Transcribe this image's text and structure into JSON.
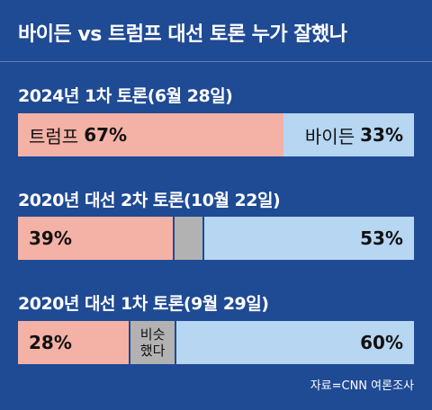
{
  "title": "바이든 vs 트럼프 대선 토론 누가 잘했나",
  "source": "자료=CNN 여론조사",
  "colors": {
    "background": "#1f4a94",
    "trump": "#f4b1a5",
    "biden": "#b6d6f2",
    "tie": "#b2b2b2"
  },
  "chart_data": [
    {
      "type": "bar",
      "title": "2024년 1차 토론(6월 28일)",
      "series": [
        {
          "name": "트럼프",
          "value": 67,
          "label": "67%"
        },
        {
          "name": "바이든",
          "value": 33,
          "label": "33%"
        }
      ]
    },
    {
      "type": "bar",
      "title": "2020년 대선 2차 토론(10월 22일)",
      "series": [
        {
          "value": 39,
          "label": "39%"
        },
        {
          "value": 8,
          "label": ""
        },
        {
          "value": 53,
          "label": "53%"
        }
      ]
    },
    {
      "type": "bar",
      "title": "2020년 대선 1차 토론(9월 29일)",
      "series": [
        {
          "value": 28,
          "label": "28%"
        },
        {
          "value": 12,
          "label": "비슷 했다",
          "label_lines": [
            "비슷",
            "했다"
          ]
        },
        {
          "value": 60,
          "label": "60%"
        }
      ]
    }
  ]
}
